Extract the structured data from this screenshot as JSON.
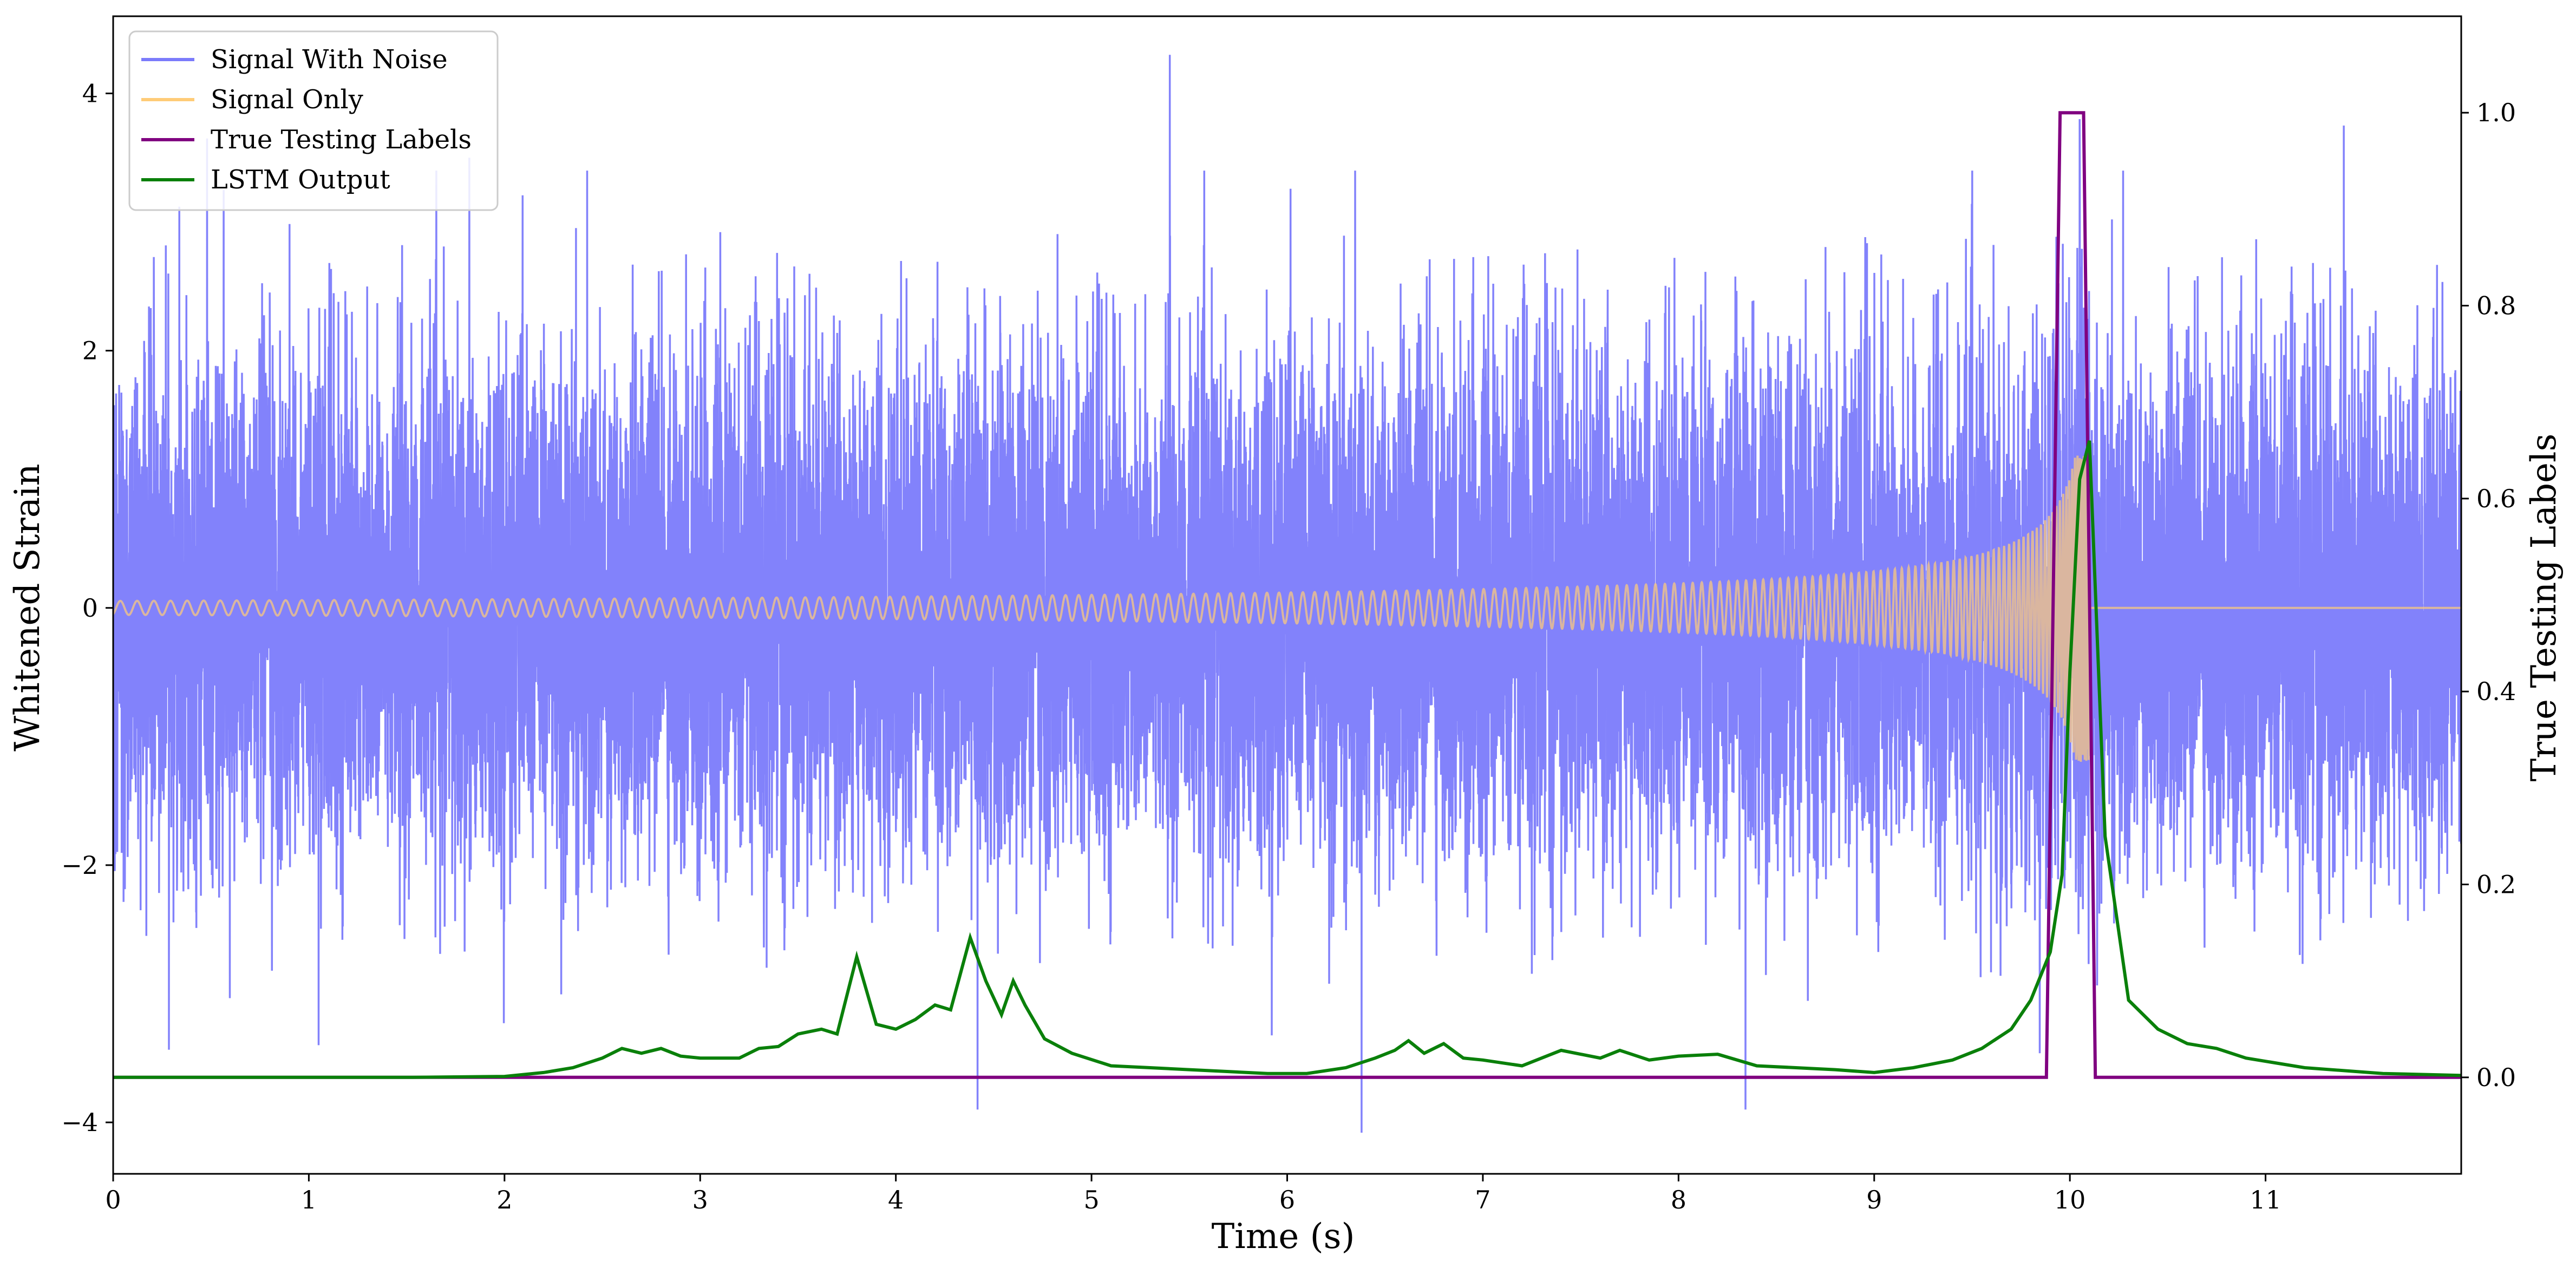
{
  "chart_data": {
    "type": "line",
    "xlabel": "Time (s)",
    "ylabel_left": "Whitened Strain",
    "ylabel_right": "True Testing Labels",
    "xlim": [
      0,
      12
    ],
    "ylim_left": [
      -4.4,
      4.6
    ],
    "ylim_right": [
      -0.1,
      1.1
    ],
    "x_ticks": [
      0,
      1,
      2,
      3,
      4,
      5,
      6,
      7,
      8,
      9,
      10,
      11
    ],
    "x_tick_labels": [
      "0",
      "1",
      "2",
      "3",
      "4",
      "5",
      "6",
      "7",
      "8",
      "9",
      "10",
      "11"
    ],
    "y_left_ticks": [
      -4,
      -2,
      0,
      2,
      4
    ],
    "y_left_tick_labels": [
      "−4",
      "−2",
      "0",
      "2",
      "4"
    ],
    "y_right_ticks": [
      0.0,
      0.2,
      0.4,
      0.6,
      0.8,
      1.0
    ],
    "y_right_tick_labels": [
      "0.0",
      "0.2",
      "0.4",
      "0.6",
      "0.8",
      "1.0"
    ],
    "grid": false,
    "legend_position": "top-left",
    "legend": [
      {
        "label": "Signal With Noise",
        "color": "#7b7bfb"
      },
      {
        "label": "Signal Only",
        "color": "#ffcc77"
      },
      {
        "label": "True Testing Labels",
        "color": "#800080"
      },
      {
        "label": "LSTM Output",
        "color": "#0a800a"
      }
    ],
    "series": [
      {
        "name": "Signal With Noise",
        "axis": "left",
        "color": "#7b7bfb",
        "description_values": "white noise, approx. standard deviation 1, amplitude range about -4.1 to 4.3",
        "noise_std": 1.0,
        "peaks": [
          {
            "x": 5.4,
            "y": 4.3
          },
          {
            "x": 6.38,
            "y": -4.08
          },
          {
            "x": 0.48,
            "y": 3.65
          },
          {
            "x": 1.82,
            "y": 3.5
          },
          {
            "x": 11.4,
            "y": 3.75
          },
          {
            "x": 1.05,
            "y": -3.4
          },
          {
            "x": 10.05,
            "y": 3.8
          }
        ]
      },
      {
        "name": "Signal Only",
        "axis": "left",
        "color": "#ffcc77",
        "chirp_start": 0.0,
        "chirp_merger": 10.1,
        "amplitude_start": 0.02,
        "amplitude_peak": 1.2,
        "after_merger": 0.0
      },
      {
        "name": "True Testing Labels",
        "axis": "right",
        "color": "#800080",
        "x": [
          0,
          9.88,
          9.95,
          10.07,
          10.13,
          12
        ],
        "values": [
          0,
          0,
          1,
          1,
          0,
          0
        ]
      },
      {
        "name": "LSTM Output",
        "axis": "right",
        "color": "#0a800a",
        "x": [
          0,
          1.5,
          2.0,
          2.2,
          2.35,
          2.5,
          2.6,
          2.7,
          2.8,
          2.9,
          3.0,
          3.2,
          3.3,
          3.4,
          3.5,
          3.62,
          3.7,
          3.8,
          3.9,
          4.0,
          4.1,
          4.2,
          4.28,
          4.38,
          4.46,
          4.54,
          4.6,
          4.66,
          4.76,
          4.9,
          5.1,
          5.3,
          5.5,
          5.7,
          5.9,
          6.1,
          6.3,
          6.45,
          6.55,
          6.62,
          6.7,
          6.8,
          6.9,
          7.0,
          7.2,
          7.4,
          7.6,
          7.7,
          7.85,
          8.0,
          8.2,
          8.4,
          8.6,
          8.8,
          9.0,
          9.2,
          9.4,
          9.55,
          9.7,
          9.8,
          9.9,
          9.96,
          10.0,
          10.05,
          10.1,
          10.18,
          10.3,
          10.45,
          10.6,
          10.75,
          10.9,
          11.2,
          11.6,
          12.0
        ],
        "values": [
          0.0,
          0.0,
          0.001,
          0.005,
          0.01,
          0.02,
          0.03,
          0.025,
          0.03,
          0.022,
          0.02,
          0.02,
          0.03,
          0.032,
          0.045,
          0.05,
          0.045,
          0.125,
          0.055,
          0.05,
          0.06,
          0.075,
          0.07,
          0.145,
          0.1,
          0.065,
          0.1,
          0.075,
          0.04,
          0.025,
          0.012,
          0.01,
          0.008,
          0.006,
          0.004,
          0.004,
          0.01,
          0.02,
          0.028,
          0.038,
          0.025,
          0.035,
          0.02,
          0.018,
          0.012,
          0.028,
          0.02,
          0.028,
          0.018,
          0.022,
          0.024,
          0.012,
          0.01,
          0.008,
          0.005,
          0.01,
          0.018,
          0.03,
          0.05,
          0.08,
          0.13,
          0.21,
          0.42,
          0.62,
          0.66,
          0.25,
          0.08,
          0.05,
          0.035,
          0.03,
          0.02,
          0.01,
          0.004,
          0.002
        ]
      }
    ]
  }
}
